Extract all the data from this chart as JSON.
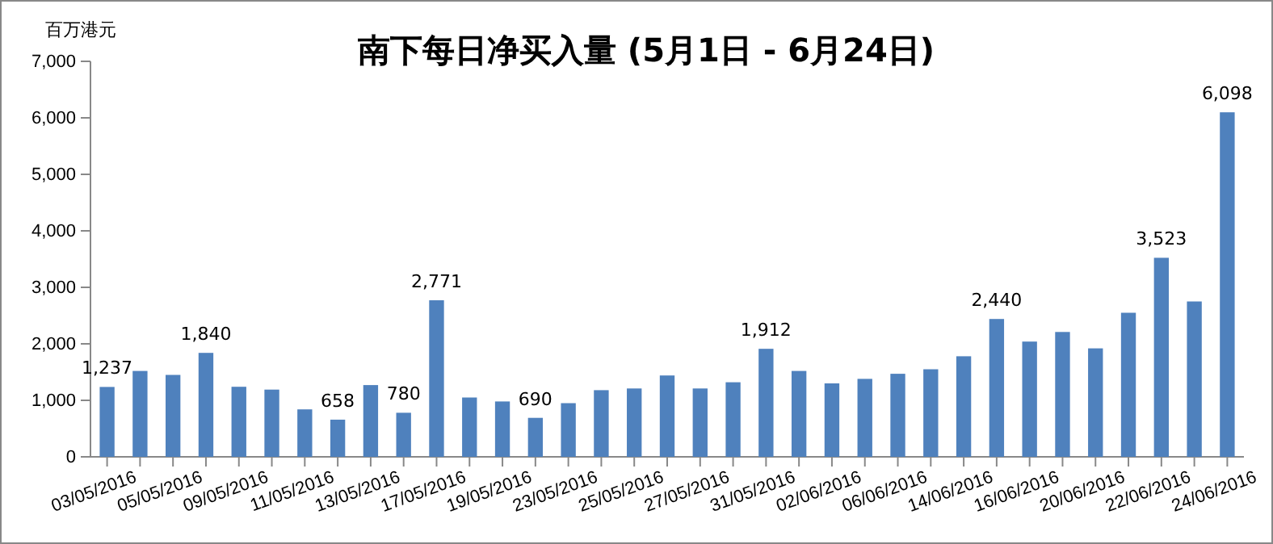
{
  "chart_data": {
    "type": "bar",
    "title": "南下每日净买入量 (5月1日 - 6月24日)",
    "ylabel": "百万港元",
    "categories": [
      "03/05/2016",
      null,
      "05/05/2016",
      null,
      "09/05/2016",
      null,
      "11/05/2016",
      null,
      "13/05/2016",
      null,
      "17/05/2016",
      null,
      "19/05/2016",
      null,
      "23/05/2016",
      null,
      "25/05/2016",
      null,
      "27/05/2016",
      null,
      "31/05/2016",
      null,
      "02/06/2016",
      null,
      "06/06/2016",
      null,
      "14/06/2016",
      null,
      "16/06/2016",
      null,
      "20/06/2016",
      null,
      "22/06/2016",
      null,
      "24/06/2016"
    ],
    "values": [
      1237,
      1520,
      1450,
      1840,
      1240,
      1190,
      840,
      658,
      1270,
      780,
      2771,
      1050,
      980,
      690,
      950,
      1180,
      1210,
      1440,
      1210,
      1320,
      1912,
      1520,
      1300,
      1380,
      1470,
      1550,
      1780,
      2440,
      2040,
      2210,
      1920,
      2550,
      3523,
      2750,
      6098
    ],
    "value_labels": [
      "1,237",
      null,
      null,
      "1,840",
      null,
      null,
      null,
      "658",
      null,
      "780",
      "2,771",
      null,
      null,
      "690",
      null,
      null,
      null,
      null,
      null,
      null,
      "1,912",
      null,
      null,
      null,
      null,
      null,
      null,
      "2,440",
      null,
      null,
      null,
      null,
      "3,523",
      null,
      "6,098"
    ],
    "color": "#4f81bd",
    "ylim": [
      0,
      7000
    ],
    "yticks": [
      0,
      {
        "value": 1000,
        "label": "1,000"
      },
      {
        "value": 2000,
        "label": "2,000"
      },
      {
        "value": 3000,
        "label": "3,000"
      },
      {
        "value": 4000,
        "label": "4,000"
      },
      {
        "value": 5000,
        "label": "5,000"
      },
      {
        "value": 6000,
        "label": "6,000"
      },
      {
        "value": 7000,
        "label": "7,000"
      }
    ],
    "grid": false
  }
}
